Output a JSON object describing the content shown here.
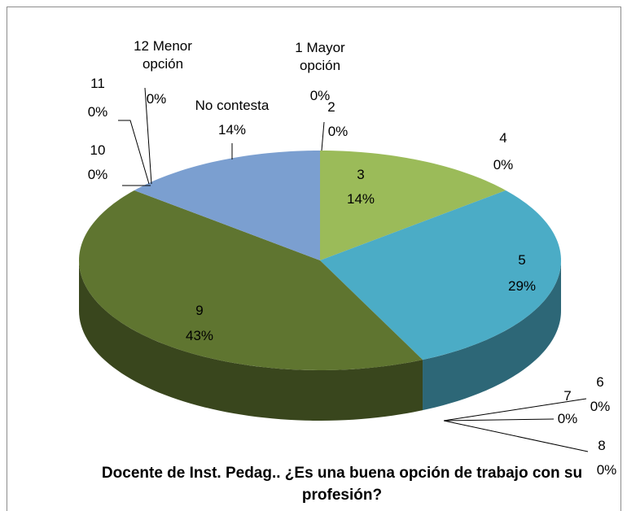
{
  "chart_data": {
    "type": "pie3d",
    "title": "Docente de Inst. Pedag.. ¿Es una buena opción de trabajo con su profesión?",
    "categories": [
      "1 Mayor opción",
      "2",
      "3",
      "4",
      "5",
      "6",
      "7",
      "8",
      "9",
      "10",
      "11",
      "12 Menor opción",
      "No contesta"
    ],
    "values": [
      0,
      0,
      14,
      0,
      29,
      0,
      0,
      0,
      43,
      0,
      0,
      0,
      14
    ],
    "value_labels": [
      "0%",
      "0%",
      "14%",
      "0%",
      "29%",
      "0%",
      "0%",
      "0%",
      "43%",
      "0%",
      "0%",
      "0%",
      "14%"
    ],
    "colors": [
      "#4f81bd",
      "#c0504d",
      "#9bbb59",
      "#8064a2",
      "#4bacc6",
      "#f79646",
      "#2c4d75",
      "#772c2a",
      "#5f7530",
      "#4d3b62",
      "#276a7c",
      "#b65708",
      "#7b9fd0"
    ]
  }
}
